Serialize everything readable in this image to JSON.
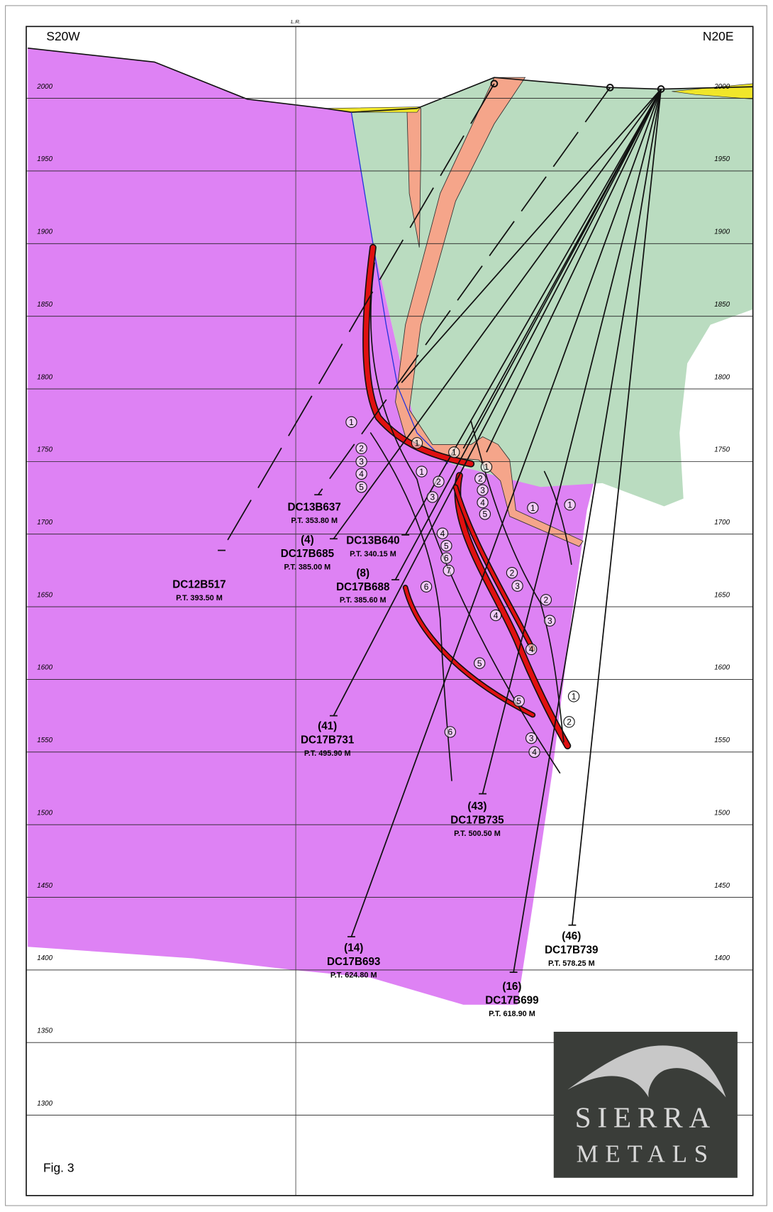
{
  "header": {
    "left": "S20W",
    "right": "N20E",
    "reference": "L.R.",
    "figure": "Fig. 3"
  },
  "elevations_left": [
    2000,
    1950,
    1900,
    1850,
    1800,
    1750,
    1700,
    1650,
    1600,
    1550,
    1500,
    1450,
    1400,
    1350,
    1300
  ],
  "elevations_right": [
    2000,
    1950,
    1900,
    1850,
    1800,
    1750,
    1700,
    1650,
    1600,
    1550,
    1500,
    1450,
    1400
  ],
  "drill_holes": [
    {
      "id": "DC13B637",
      "depth": "P.T. 353.80 M"
    },
    {
      "prefix": "(4)",
      "id": "DC17B685",
      "depth": "P.T. 385.00 M"
    },
    {
      "id": "DC13B640",
      "depth": "P.T. 340.15 M"
    },
    {
      "prefix": "(8)",
      "id": "DC17B688",
      "depth": "P.T. 385.60 M"
    },
    {
      "id": "DC12B517",
      "depth": "P.T. 393.50 M"
    },
    {
      "prefix": "(41)",
      "id": "DC17B731",
      "depth": "P.T. 495.90 M"
    },
    {
      "prefix": "(43)",
      "id": "DC17B735",
      "depth": "P.T. 500.50 M"
    },
    {
      "prefix": "(14)",
      "id": "DC17B693",
      "depth": "P.T. 624.80 M"
    },
    {
      "prefix": "(16)",
      "id": "DC17B699",
      "depth": "P.T. 618.90 M"
    },
    {
      "prefix": "(46)",
      "id": "DC17B739",
      "depth": "P.T. 578.25 M"
    }
  ],
  "markers": [
    "1",
    "1",
    "1",
    "2",
    "3",
    "4",
    "5",
    "1",
    "2",
    "3",
    "1",
    "2",
    "3",
    "4",
    "5",
    "1",
    "1",
    "4",
    "5",
    "6",
    "7",
    "6",
    "2",
    "3",
    "2",
    "3",
    "4",
    "4",
    "5",
    "5",
    "6",
    "1",
    "2",
    "3",
    "4"
  ],
  "logo": {
    "line1": "SIERRA",
    "line2": "METALS"
  }
}
